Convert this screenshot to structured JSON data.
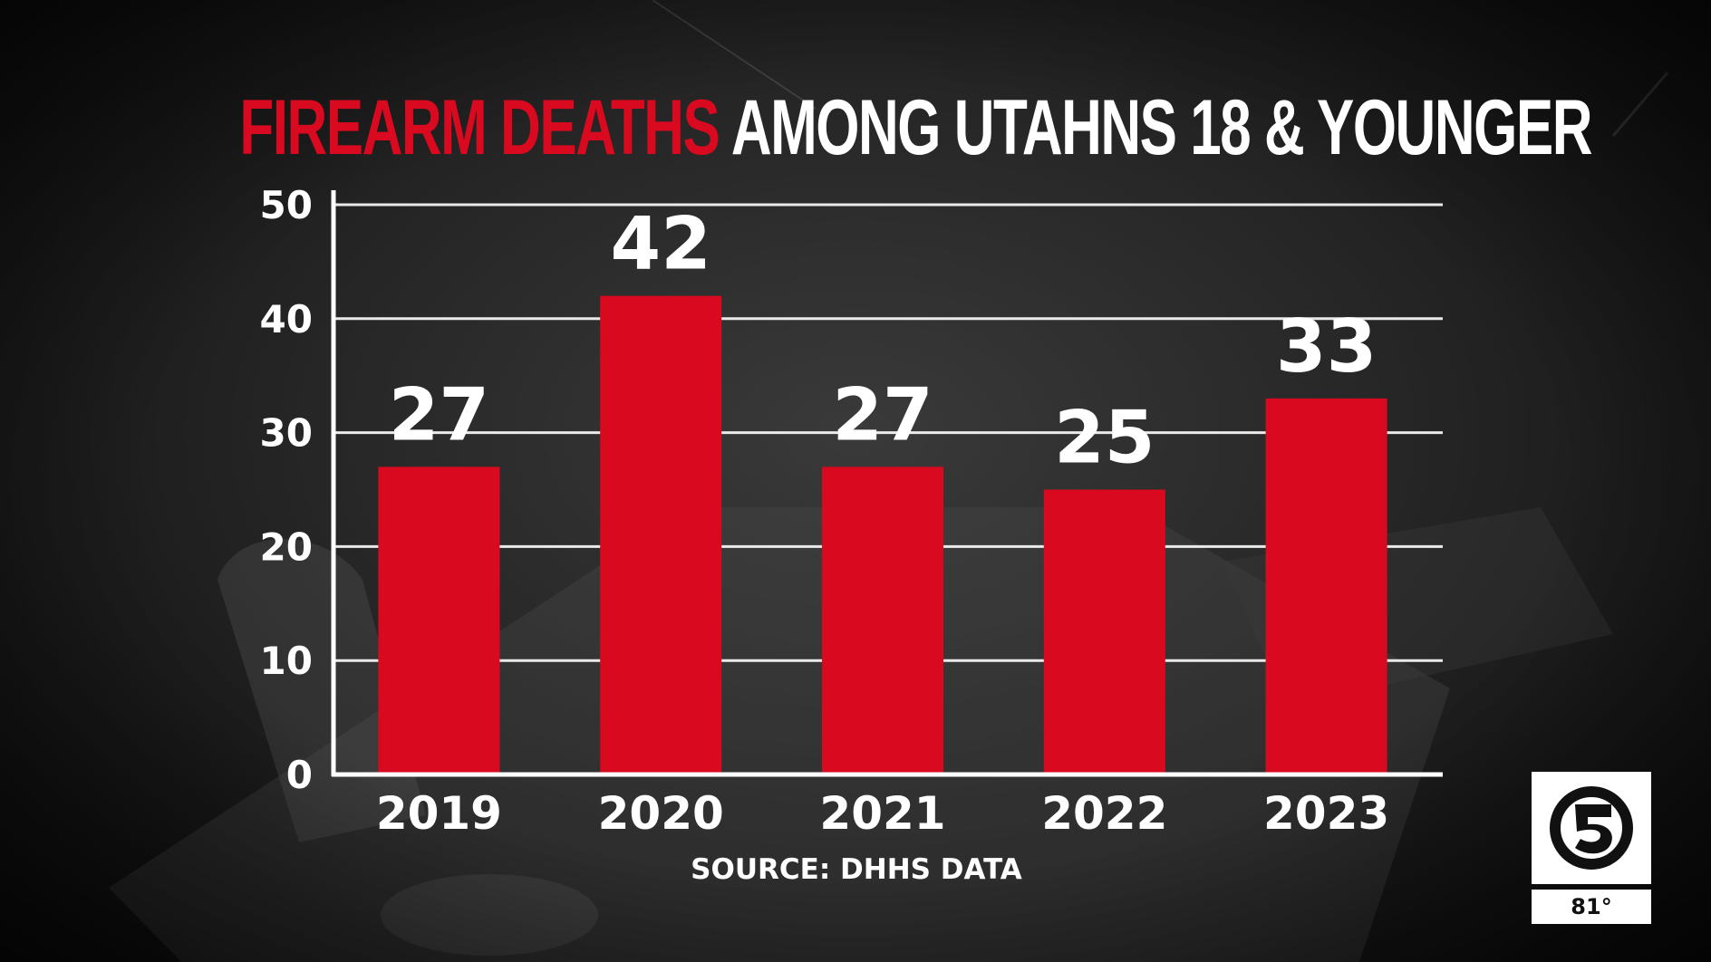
{
  "title": {
    "highlight": "FIREARM DEATHS",
    "rest": "AMONG UTAHNS 18 & YOUNGER",
    "highlight_color": "#d9091f"
  },
  "source": "SOURCE: DHHS DATA",
  "logo": {
    "icon": "channel-5-icon",
    "temperature": "81°"
  },
  "chart_data": {
    "type": "bar",
    "title": "FIREARM DEATHS AMONG UTAHNS 18 & YOUNGER",
    "categories": [
      "2019",
      "2020",
      "2021",
      "2022",
      "2023"
    ],
    "values": [
      27,
      42,
      27,
      25,
      33
    ],
    "data_labels": [
      "27",
      "42",
      "27",
      "25",
      "33"
    ],
    "ylim": [
      0,
      50
    ],
    "yticks": [
      0,
      10,
      20,
      30,
      40,
      50
    ],
    "ytick_labels": [
      "0",
      "10",
      "20",
      "30",
      "40",
      "50"
    ],
    "grid": true,
    "bar_color": "#d9091f",
    "xlabel": "",
    "ylabel": ""
  }
}
